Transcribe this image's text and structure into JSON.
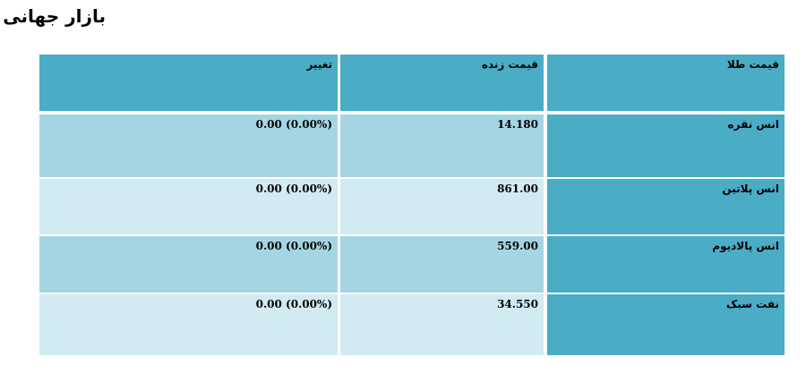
{
  "page": {
    "title": "بازار جهانی"
  },
  "table": {
    "headers": {
      "name": "قیمت طلا",
      "price": "قیمت زنده",
      "change": "تغییر"
    },
    "rows": [
      {
        "name": "انس نقره",
        "price": "14.180",
        "change": "0.00 (0.00%)"
      },
      {
        "name": "انس پلاتین",
        "price": "861.00",
        "change": "0.00 (0.00%)"
      },
      {
        "name": "انس پالادیوم",
        "price": "559.00",
        "change": "0.00 (0.00%)"
      },
      {
        "name": "نفت سبک",
        "price": "34.550",
        "change": "0.00 (0.00%)"
      }
    ]
  },
  "colors": {
    "header_bg": "#4bacc6",
    "row_dark": "#a5d5e2",
    "row_light": "#d2eaf1"
  }
}
